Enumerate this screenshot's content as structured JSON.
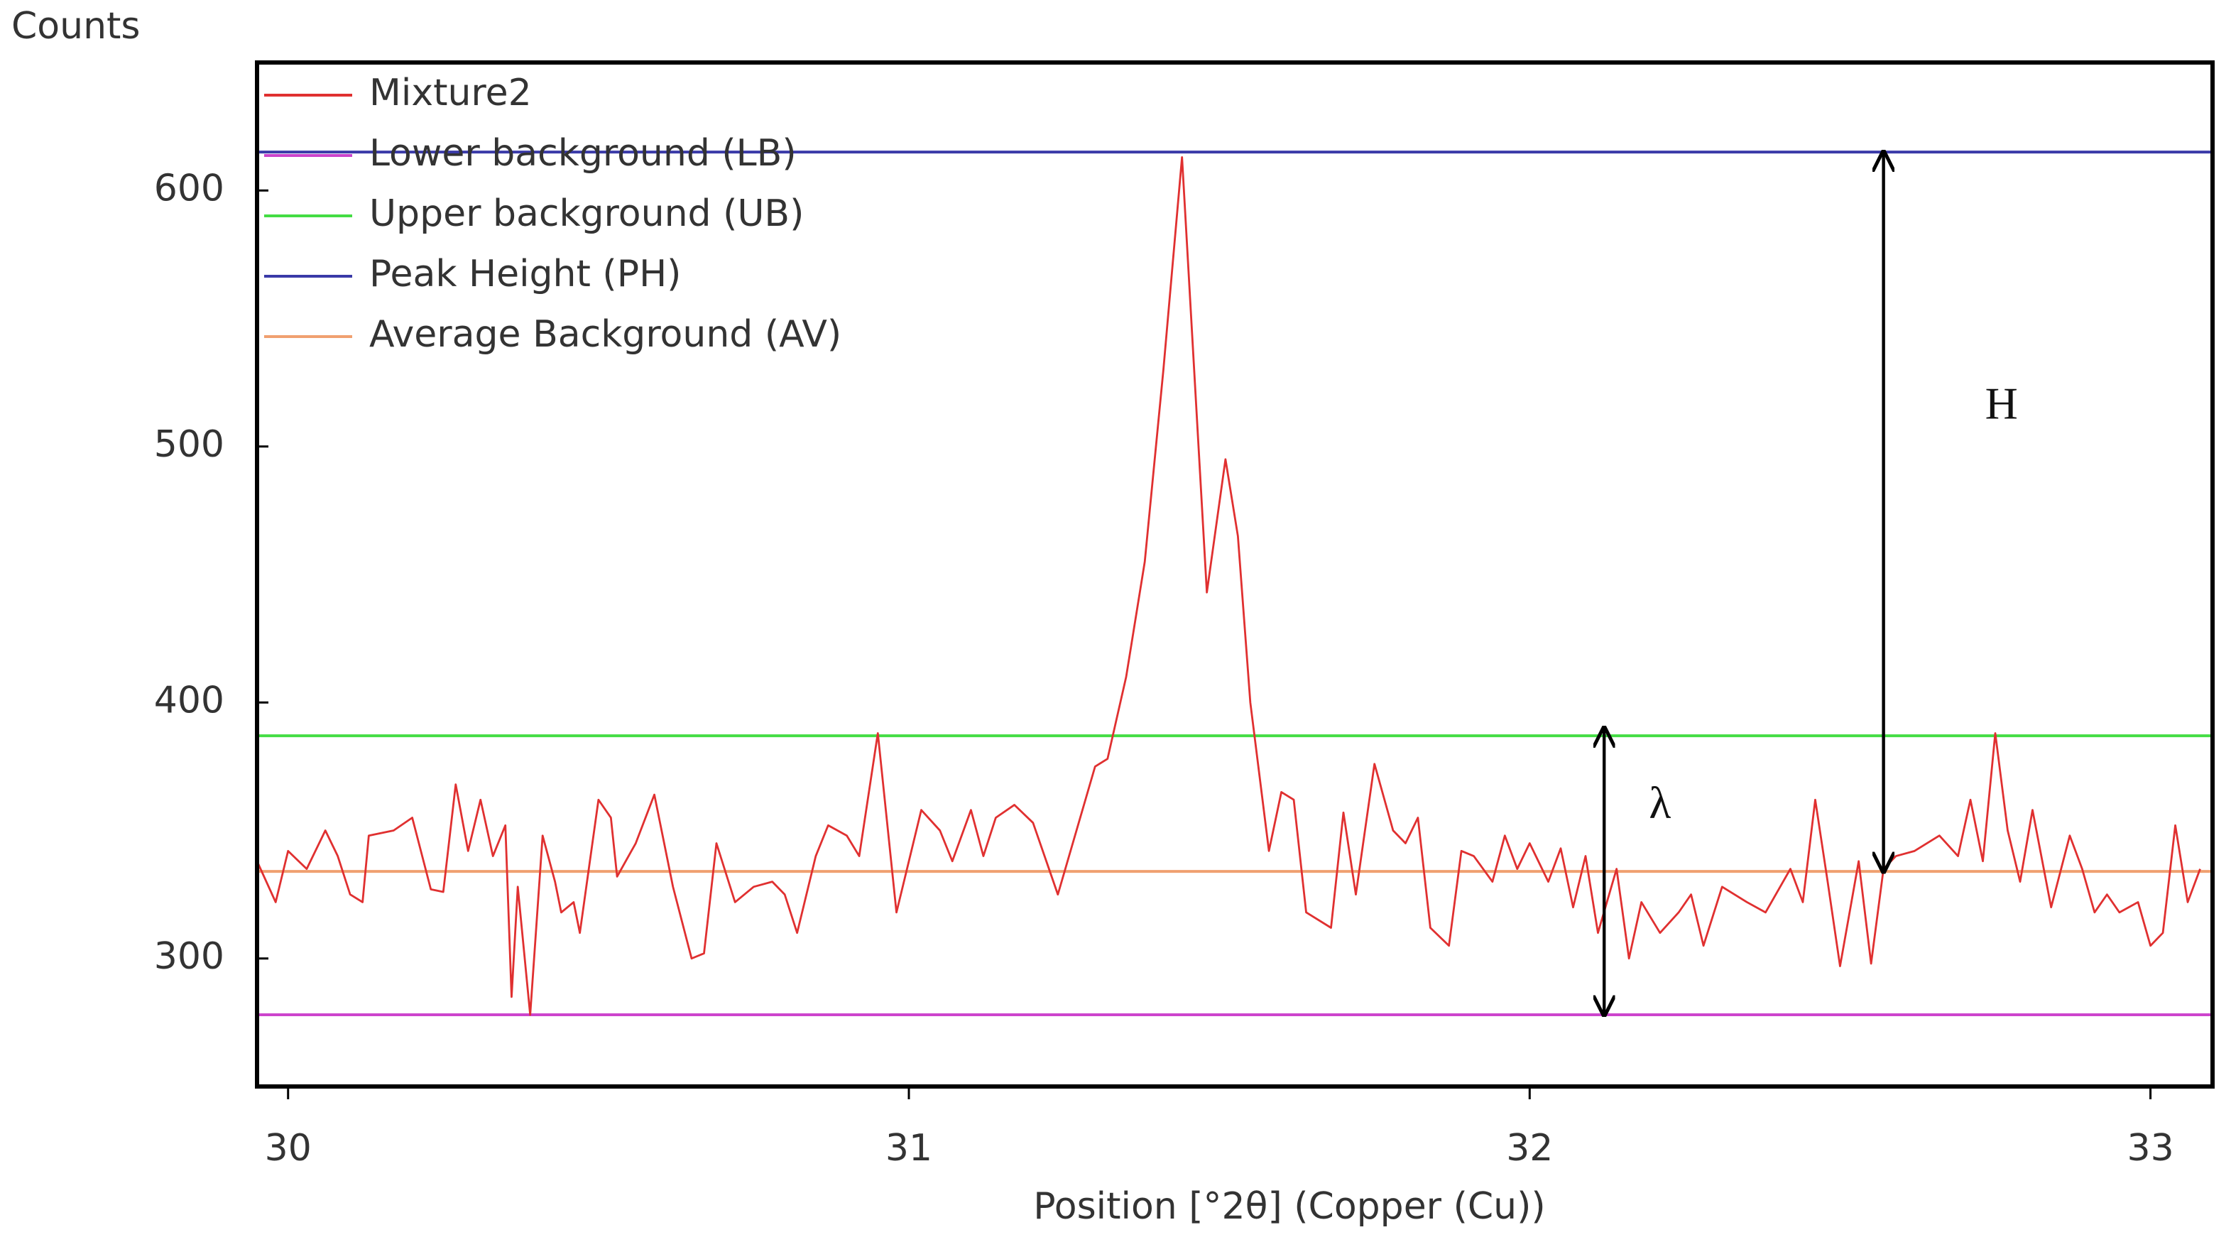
{
  "chart_data": {
    "type": "line",
    "title": "Counts",
    "xlabel": "Position [°2θ] (Copper (Cu))",
    "xlim": [
      29.95,
      33.1
    ],
    "ylim": [
      250,
      650
    ],
    "xticks": [
      30,
      31,
      32,
      33
    ],
    "yticks": [
      300,
      400,
      500,
      600
    ],
    "legend": "upper left",
    "series": [
      {
        "name": "Mixture2",
        "color": "#e03030",
        "x": [
          29.95,
          29.98,
          30.0,
          30.03,
          30.06,
          30.08,
          30.1,
          30.12,
          30.13,
          30.17,
          30.2,
          30.23,
          30.25,
          30.27,
          30.29,
          30.31,
          30.33,
          30.35,
          30.36,
          30.37,
          30.39,
          30.41,
          30.43,
          30.44,
          30.46,
          30.47,
          30.5,
          30.52,
          30.53,
          30.56,
          30.59,
          30.62,
          30.65,
          30.67,
          30.69,
          30.72,
          30.75,
          30.78,
          30.8,
          30.82,
          30.85,
          30.87,
          30.9,
          30.92,
          30.95,
          30.98,
          31.02,
          31.05,
          31.07,
          31.1,
          31.12,
          31.14,
          31.17,
          31.2,
          31.24,
          31.27,
          31.3,
          31.32,
          31.35,
          31.38,
          31.41,
          31.44,
          31.48,
          31.51,
          31.53,
          31.55,
          31.58,
          31.6,
          31.62,
          31.64,
          31.68,
          31.7,
          31.72,
          31.75,
          31.78,
          31.8,
          31.82,
          31.84,
          31.87,
          31.89,
          31.91,
          31.94,
          31.96,
          31.98,
          32.0,
          32.03,
          32.05,
          32.07,
          32.09,
          32.11,
          32.14,
          32.16,
          32.18,
          32.21,
          32.24,
          32.26,
          32.28,
          32.31,
          32.35,
          32.38,
          32.42,
          32.44,
          32.46,
          32.48,
          32.5,
          32.53,
          32.55,
          32.57,
          32.59,
          32.62,
          32.66,
          32.69,
          32.71,
          32.73,
          32.75,
          32.77,
          32.79,
          32.81,
          32.84,
          32.87,
          32.89,
          32.91,
          32.93,
          32.95,
          32.98,
          33.0,
          33.02,
          33.04,
          33.06,
          33.08
        ],
        "values": [
          338,
          322,
          342,
          335,
          350,
          340,
          325,
          322,
          348,
          350,
          355,
          327,
          326,
          368,
          342,
          362,
          340,
          352,
          285,
          328,
          278,
          348,
          330,
          318,
          322,
          310,
          362,
          355,
          332,
          345,
          364,
          328,
          300,
          302,
          345,
          322,
          328,
          330,
          325,
          310,
          340,
          352,
          348,
          340,
          388,
          318,
          358,
          350,
          338,
          358,
          340,
          355,
          360,
          353,
          325,
          350,
          375,
          378,
          410,
          455,
          530,
          613,
          443,
          495,
          465,
          400,
          342,
          365,
          362,
          318,
          312,
          357,
          325,
          376,
          350,
          345,
          355,
          312,
          305,
          342,
          340,
          330,
          348,
          335,
          345,
          330,
          343,
          320,
          340,
          310,
          335,
          300,
          322,
          310,
          318,
          325,
          305,
          328,
          322,
          318,
          335,
          322,
          362,
          330,
          297,
          338,
          298,
          335,
          340,
          342,
          348,
          340,
          362,
          338,
          388,
          350,
          330,
          358,
          320,
          348,
          335,
          318,
          325,
          318,
          322,
          305,
          310,
          352,
          322,
          335
        ]
      }
    ],
    "reference_lines": [
      {
        "name": "Lower background (LB)",
        "color": "#cc44cc",
        "value": 278
      },
      {
        "name": "Upper background (UB)",
        "color": "#44dd44",
        "value": 387
      },
      {
        "name": "Peak Height (PH)",
        "color": "#3a3aa8",
        "value": 615
      },
      {
        "name": "Average Background (AV)",
        "color": "#f0a070",
        "value": 334
      }
    ],
    "annotations": [
      {
        "text": "H",
        "x": 32.76,
        "y": 515,
        "arrow": {
          "x": 32.57,
          "from": 334,
          "to": 615
        }
      },
      {
        "text": "λ",
        "x": 32.21,
        "y": 359,
        "arrow": {
          "x": 32.12,
          "from": 278,
          "to": 390
        }
      }
    ]
  }
}
